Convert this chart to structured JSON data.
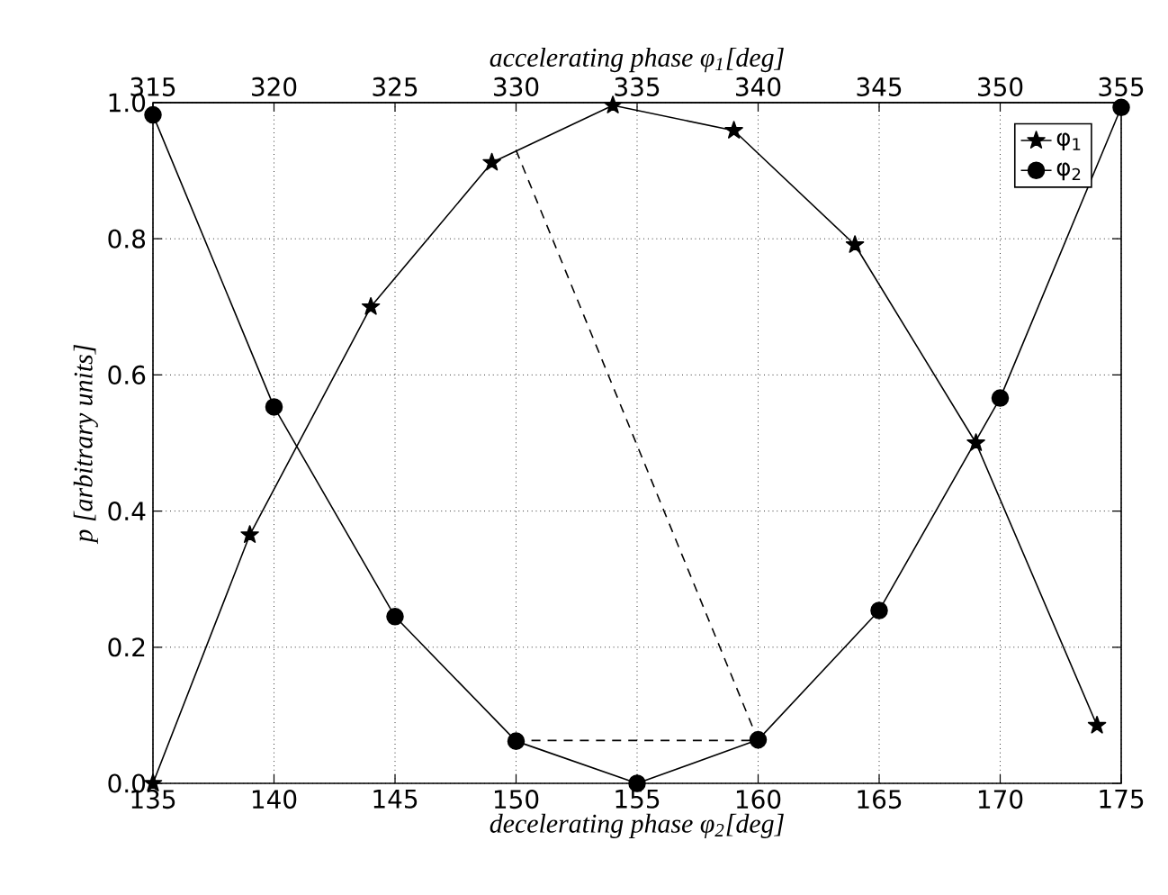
{
  "chart_data": {
    "type": "line",
    "xlabel": "decelerating phase φ$_{2}$[deg]",
    "x2label": "accelerating phase φ$_{1}$[deg]",
    "ylabel": "p [arbitrary units]",
    "xlim": [
      135,
      175
    ],
    "xticks": [
      135,
      140,
      145,
      150,
      155,
      160,
      165,
      170,
      175
    ],
    "x2lim": [
      315,
      355
    ],
    "x2ticks": [
      315,
      320,
      325,
      330,
      335,
      340,
      345,
      350,
      355
    ],
    "ylim": [
      0,
      1
    ],
    "yticks": [
      {
        "value": 0,
        "label": "0.0"
      },
      0.2,
      0.4,
      0.6,
      0.8,
      {
        "value": 1,
        "label": "1.0"
      }
    ],
    "grid": true,
    "legend": "top right",
    "series": [
      {
        "name": "φ$_{1}$",
        "color": "#000000",
        "marker": "star",
        "axis": "x2",
        "x": [
          315,
          319,
          324,
          329,
          334,
          339,
          344,
          349,
          354
        ],
        "values": [
          0.0,
          0.365,
          0.7,
          0.912,
          0.996,
          0.959,
          0.791,
          0.5,
          0.085
        ]
      },
      {
        "name": "φ$_{2}$",
        "color": "#000000",
        "marker": "circle",
        "x": [
          135,
          140,
          145,
          150,
          155,
          160,
          165,
          170,
          175
        ],
        "values": [
          0.982,
          0.553,
          0.245,
          0.062,
          0.0,
          0.064,
          0.254,
          0.566,
          0.993
        ]
      },
      {
        "color": "#000000",
        "marker": "none",
        "line_style": "dashed",
        "x": [
          150,
          160,
          150
        ],
        "values": [
          0.93,
          0.063,
          0.063
        ]
      }
    ]
  }
}
